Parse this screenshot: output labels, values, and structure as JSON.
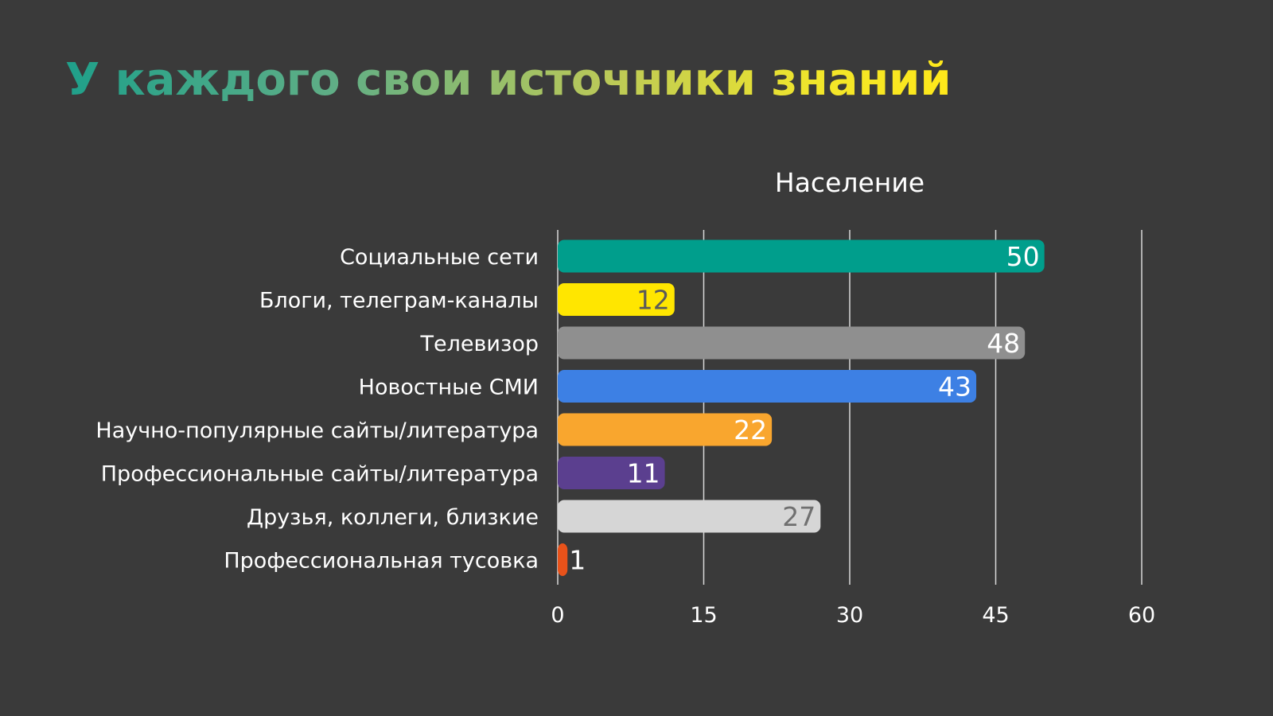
{
  "slide": {
    "title": "У каждого свои источники знаний"
  },
  "chart_data": {
    "type": "bar",
    "orientation": "horizontal",
    "title": "Население",
    "xlabel": "",
    "ylabel": "",
    "categories": [
      "Социальные сети",
      "Блоги, телеграм-каналы",
      "Телевизор",
      "Новостные СМИ",
      "Научно-популярные сайты/литература",
      "Профессиональные сайты/литература",
      "Друзья, коллеги, близкие",
      "Профессиональная тусовка"
    ],
    "values": [
      50,
      12,
      48,
      43,
      22,
      11,
      27,
      1
    ],
    "bar_colors": [
      "#009e8c",
      "#ffe600",
      "#8f8f8f",
      "#3d80e4",
      "#f9a62e",
      "#5b3f8f",
      "#d6d6d6",
      "#e8521a"
    ],
    "label_colors": [
      "#ffffff",
      "#5a5a5a",
      "#ffffff",
      "#ffffff",
      "#ffffff",
      "#ffffff",
      "#707070",
      "#ffffff"
    ],
    "xlim": [
      0,
      60
    ],
    "xticks": [
      0,
      15,
      30,
      45,
      60
    ],
    "grid": true,
    "legend": "none"
  }
}
